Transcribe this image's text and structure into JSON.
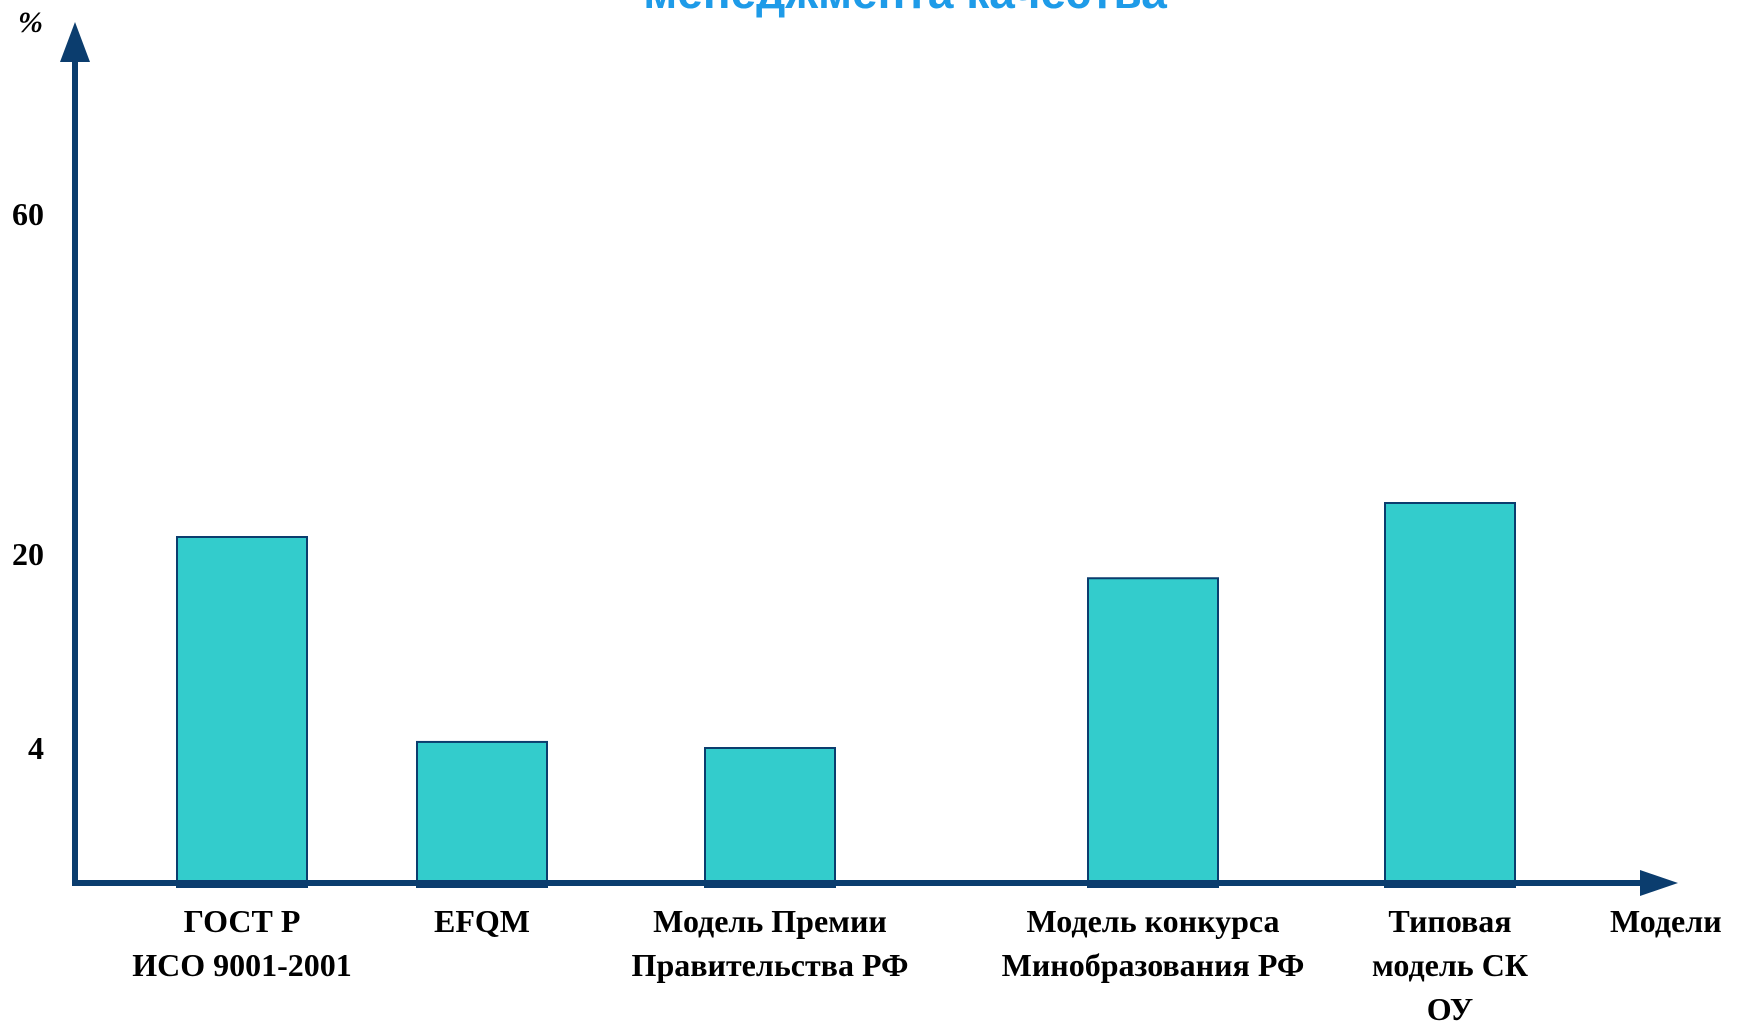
{
  "title": "менеджмента качества",
  "colors": {
    "title": "#1E9BE8",
    "axis": "#0B3D6E",
    "bar_fill": "#33CCCC",
    "bar_stroke": "#0B3D6E",
    "text": "#000000"
  },
  "chart_data": {
    "type": "bar",
    "title": "менеджмента качества",
    "ylabel": "%",
    "xlabel": "Модели",
    "yticks": [
      {
        "label": "4",
        "value": 4
      },
      {
        "label": "20",
        "value": 20
      },
      {
        "label": "60",
        "value": 60
      }
    ],
    "categories": [
      [
        "ГОСТ Р",
        "ИСО 9001-2001"
      ],
      [
        "EFQM"
      ],
      [
        "Модель Премии",
        "Правительства РФ"
      ],
      [
        "Модель конкурса",
        "Минобразования РФ"
      ],
      [
        "Типовая",
        "модель СК",
        "ОУ"
      ]
    ],
    "values": [
      22,
      4.5,
      4,
      18,
      26
    ],
    "grid": false,
    "legend": "none"
  }
}
